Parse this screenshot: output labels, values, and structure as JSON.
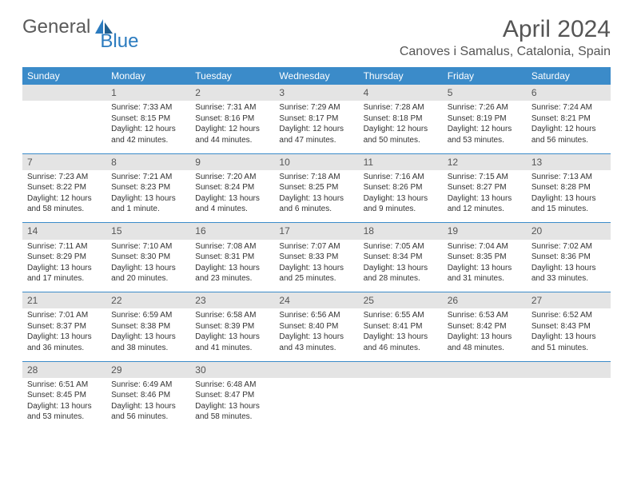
{
  "logo": {
    "word1": "General",
    "word2": "Blue",
    "brand_color": "#2b7bbf",
    "text_color": "#5a5a5a"
  },
  "title": "April 2024",
  "location": "Canoves i Samalus, Catalonia, Spain",
  "style": {
    "header_bg": "#3b8bc9",
    "header_fg": "#ffffff",
    "datehead_bg": "#e4e4e4",
    "datehead_fg": "#555555",
    "cell_fontsize": 10,
    "datehead_fontsize": 12,
    "dayname_fontsize": 12,
    "title_fontsize": 30,
    "location_fontsize": 16,
    "row_border_color": "#3b8bc9"
  },
  "day_names": [
    "Sunday",
    "Monday",
    "Tuesday",
    "Wednesday",
    "Thursday",
    "Friday",
    "Saturday"
  ],
  "weeks": [
    {
      "dates": [
        "",
        "1",
        "2",
        "3",
        "4",
        "5",
        "6"
      ],
      "cells": [
        null,
        {
          "sunrise": "7:33 AM",
          "sunset": "8:15 PM",
          "daylight": "12 hours and 42 minutes."
        },
        {
          "sunrise": "7:31 AM",
          "sunset": "8:16 PM",
          "daylight": "12 hours and 44 minutes."
        },
        {
          "sunrise": "7:29 AM",
          "sunset": "8:17 PM",
          "daylight": "12 hours and 47 minutes."
        },
        {
          "sunrise": "7:28 AM",
          "sunset": "8:18 PM",
          "daylight": "12 hours and 50 minutes."
        },
        {
          "sunrise": "7:26 AM",
          "sunset": "8:19 PM",
          "daylight": "12 hours and 53 minutes."
        },
        {
          "sunrise": "7:24 AM",
          "sunset": "8:21 PM",
          "daylight": "12 hours and 56 minutes."
        }
      ]
    },
    {
      "dates": [
        "7",
        "8",
        "9",
        "10",
        "11",
        "12",
        "13"
      ],
      "cells": [
        {
          "sunrise": "7:23 AM",
          "sunset": "8:22 PM",
          "daylight": "12 hours and 58 minutes."
        },
        {
          "sunrise": "7:21 AM",
          "sunset": "8:23 PM",
          "daylight": "13 hours and 1 minute."
        },
        {
          "sunrise": "7:20 AM",
          "sunset": "8:24 PM",
          "daylight": "13 hours and 4 minutes."
        },
        {
          "sunrise": "7:18 AM",
          "sunset": "8:25 PM",
          "daylight": "13 hours and 6 minutes."
        },
        {
          "sunrise": "7:16 AM",
          "sunset": "8:26 PM",
          "daylight": "13 hours and 9 minutes."
        },
        {
          "sunrise": "7:15 AM",
          "sunset": "8:27 PM",
          "daylight": "13 hours and 12 minutes."
        },
        {
          "sunrise": "7:13 AM",
          "sunset": "8:28 PM",
          "daylight": "13 hours and 15 minutes."
        }
      ]
    },
    {
      "dates": [
        "14",
        "15",
        "16",
        "17",
        "18",
        "19",
        "20"
      ],
      "cells": [
        {
          "sunrise": "7:11 AM",
          "sunset": "8:29 PM",
          "daylight": "13 hours and 17 minutes."
        },
        {
          "sunrise": "7:10 AM",
          "sunset": "8:30 PM",
          "daylight": "13 hours and 20 minutes."
        },
        {
          "sunrise": "7:08 AM",
          "sunset": "8:31 PM",
          "daylight": "13 hours and 23 minutes."
        },
        {
          "sunrise": "7:07 AM",
          "sunset": "8:33 PM",
          "daylight": "13 hours and 25 minutes."
        },
        {
          "sunrise": "7:05 AM",
          "sunset": "8:34 PM",
          "daylight": "13 hours and 28 minutes."
        },
        {
          "sunrise": "7:04 AM",
          "sunset": "8:35 PM",
          "daylight": "13 hours and 31 minutes."
        },
        {
          "sunrise": "7:02 AM",
          "sunset": "8:36 PM",
          "daylight": "13 hours and 33 minutes."
        }
      ]
    },
    {
      "dates": [
        "21",
        "22",
        "23",
        "24",
        "25",
        "26",
        "27"
      ],
      "cells": [
        {
          "sunrise": "7:01 AM",
          "sunset": "8:37 PM",
          "daylight": "13 hours and 36 minutes."
        },
        {
          "sunrise": "6:59 AM",
          "sunset": "8:38 PM",
          "daylight": "13 hours and 38 minutes."
        },
        {
          "sunrise": "6:58 AM",
          "sunset": "8:39 PM",
          "daylight": "13 hours and 41 minutes."
        },
        {
          "sunrise": "6:56 AM",
          "sunset": "8:40 PM",
          "daylight": "13 hours and 43 minutes."
        },
        {
          "sunrise": "6:55 AM",
          "sunset": "8:41 PM",
          "daylight": "13 hours and 46 minutes."
        },
        {
          "sunrise": "6:53 AM",
          "sunset": "8:42 PM",
          "daylight": "13 hours and 48 minutes."
        },
        {
          "sunrise": "6:52 AM",
          "sunset": "8:43 PM",
          "daylight": "13 hours and 51 minutes."
        }
      ]
    },
    {
      "dates": [
        "28",
        "29",
        "30",
        "",
        "",
        "",
        ""
      ],
      "cells": [
        {
          "sunrise": "6:51 AM",
          "sunset": "8:45 PM",
          "daylight": "13 hours and 53 minutes."
        },
        {
          "sunrise": "6:49 AM",
          "sunset": "8:46 PM",
          "daylight": "13 hours and 56 minutes."
        },
        {
          "sunrise": "6:48 AM",
          "sunset": "8:47 PM",
          "daylight": "13 hours and 58 minutes."
        },
        null,
        null,
        null,
        null
      ]
    }
  ],
  "labels": {
    "sunrise": "Sunrise:",
    "sunset": "Sunset:",
    "daylight": "Daylight:"
  }
}
